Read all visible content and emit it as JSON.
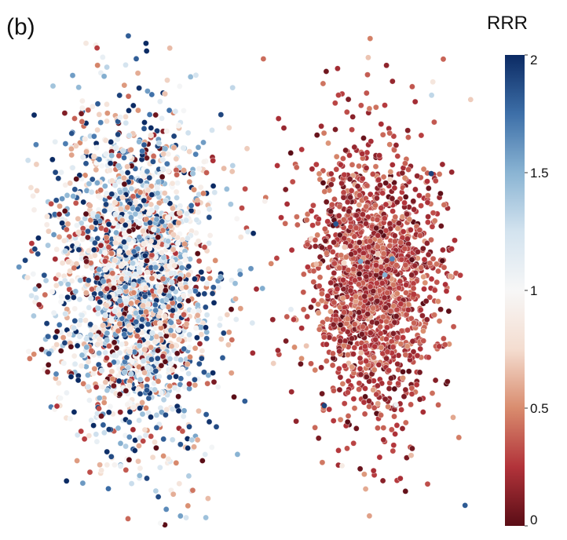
{
  "panel_label": "(b)",
  "chart_data": {
    "type": "scatter",
    "title": "",
    "xlabel": "",
    "ylabel": "",
    "colorbar": {
      "title": "RRR",
      "range": [
        0,
        2
      ],
      "ticks": [
        "0",
        "0.5",
        "1",
        "1.5",
        "2"
      ],
      "tick_values": [
        0,
        0.5,
        1,
        1.5,
        2
      ],
      "colors": [
        "#5a0d16",
        "#b2333a",
        "#d98c6e",
        "#f4ddd0",
        "#f7f7f7",
        "#d3e3ef",
        "#8ab4d3",
        "#3d6fa8",
        "#0b2a63"
      ]
    },
    "clusters": [
      {
        "name": "left",
        "cx": -2.0,
        "cy": 0.1,
        "sx": 0.85,
        "sy": 1.2,
        "n": 2400,
        "rrr_mean": 0.95,
        "rrr_sd": 0.55
      },
      {
        "name": "right",
        "cx": 2.4,
        "cy": 0.1,
        "sx": 0.7,
        "sy": 1.0,
        "n": 1700,
        "rrr_mean": 0.28,
        "rrr_sd": 0.14
      }
    ],
    "grid": false,
    "legend": "right"
  }
}
